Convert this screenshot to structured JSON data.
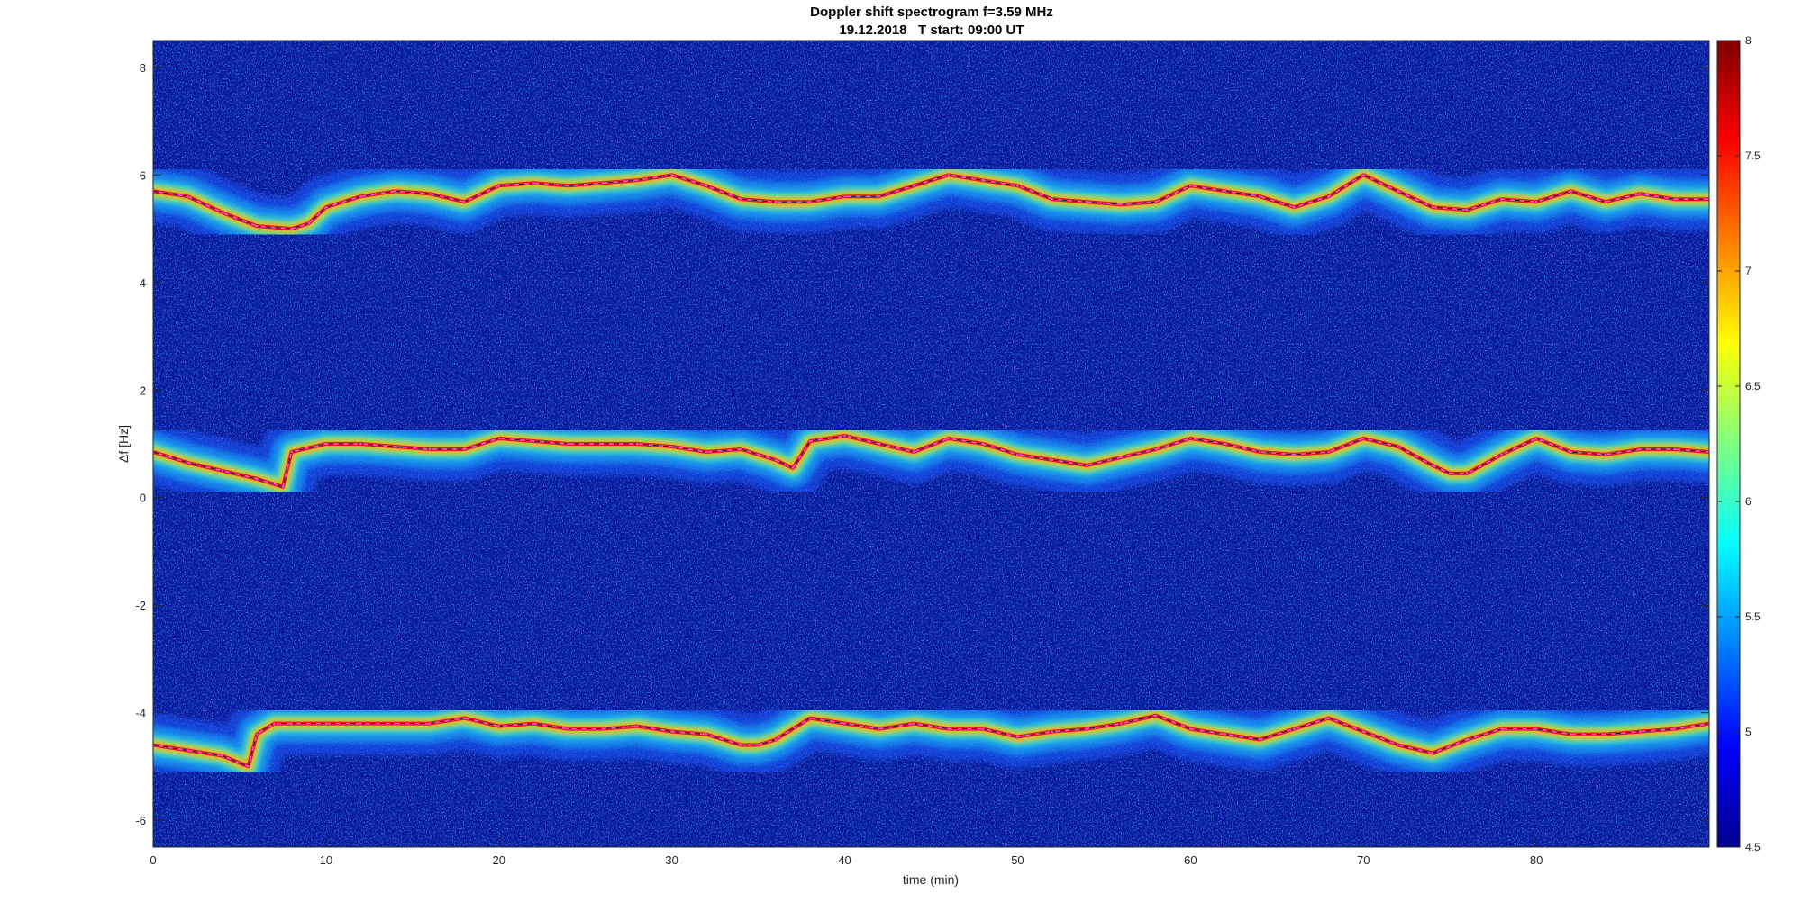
{
  "chart_data": {
    "type": "heatmap",
    "title": "Doppler shift spectrogram f=3.59 MHz",
    "subtitle": "19.12.2018   T start: 09:00 UT",
    "xlabel": "time (min)",
    "ylabel": "Δf [Hz]",
    "xlim": [
      0,
      90
    ],
    "ylim": [
      -6.5,
      8.5
    ],
    "x_ticks": [
      0,
      10,
      20,
      30,
      40,
      50,
      60,
      70,
      80
    ],
    "y_ticks": [
      -6,
      -4,
      -2,
      0,
      2,
      4,
      6,
      8
    ],
    "colorbar": {
      "range": [
        4.5,
        8
      ],
      "ticks": [
        4.5,
        5,
        5.5,
        6,
        6.5,
        7,
        7.5,
        8
      ],
      "colormap": "jet"
    },
    "background_color": "#0a1aa0",
    "grid": false,
    "series": [
      {
        "x": [
          0,
          2,
          4,
          6,
          8,
          9,
          10,
          12,
          14,
          16,
          18,
          20,
          22,
          24,
          26,
          28,
          30,
          32,
          34,
          36,
          38,
          40,
          42,
          44,
          46,
          48,
          50,
          52,
          54,
          56,
          58,
          60,
          62,
          64,
          66,
          68,
          70,
          72,
          74,
          76,
          78,
          80,
          82,
          84,
          86,
          88,
          90
        ],
        "values": [
          5.7,
          5.6,
          5.3,
          5.05,
          5.0,
          5.1,
          5.4,
          5.6,
          5.7,
          5.65,
          5.5,
          5.8,
          5.85,
          5.8,
          5.85,
          5.9,
          6.0,
          5.8,
          5.55,
          5.5,
          5.5,
          5.6,
          5.6,
          5.8,
          6.0,
          5.9,
          5.8,
          5.55,
          5.5,
          5.45,
          5.5,
          5.8,
          5.7,
          5.6,
          5.4,
          5.6,
          6.0,
          5.7,
          5.4,
          5.35,
          5.55,
          5.5,
          5.7,
          5.5,
          5.65,
          5.55,
          5.55
        ]
      },
      {
        "x": [
          0,
          2,
          4,
          6,
          7.5,
          8,
          10,
          12,
          14,
          16,
          18,
          20,
          22,
          24,
          26,
          28,
          30,
          32,
          34,
          36,
          37,
          38,
          40,
          42,
          44,
          46,
          48,
          50,
          52,
          54,
          56,
          58,
          60,
          62,
          64,
          66,
          68,
          70,
          72,
          74,
          75,
          76,
          78,
          80,
          82,
          84,
          86,
          88,
          90
        ],
        "values": [
          0.85,
          0.65,
          0.5,
          0.35,
          0.2,
          0.85,
          1.0,
          1.0,
          0.95,
          0.9,
          0.9,
          1.1,
          1.05,
          1.0,
          1.0,
          1.0,
          0.95,
          0.85,
          0.9,
          0.7,
          0.55,
          1.05,
          1.15,
          1.0,
          0.85,
          1.1,
          1.0,
          0.8,
          0.7,
          0.6,
          0.75,
          0.9,
          1.1,
          1.0,
          0.85,
          0.8,
          0.85,
          1.1,
          0.95,
          0.6,
          0.45,
          0.45,
          0.8,
          1.1,
          0.85,
          0.8,
          0.9,
          0.9,
          0.85
        ]
      },
      {
        "x": [
          0,
          2,
          4,
          5.5,
          6,
          7,
          8,
          10,
          12,
          14,
          16,
          18,
          20,
          22,
          24,
          26,
          28,
          30,
          32,
          34,
          35,
          36,
          38,
          40,
          42,
          44,
          46,
          48,
          50,
          52,
          54,
          56,
          58,
          60,
          62,
          64,
          66,
          68,
          70,
          72,
          74,
          76,
          78,
          80,
          82,
          84,
          86,
          88,
          90
        ],
        "values": [
          -4.6,
          -4.7,
          -4.8,
          -5.0,
          -4.4,
          -4.2,
          -4.2,
          -4.2,
          -4.2,
          -4.2,
          -4.2,
          -4.1,
          -4.25,
          -4.2,
          -4.3,
          -4.3,
          -4.25,
          -4.35,
          -4.4,
          -4.6,
          -4.6,
          -4.5,
          -4.1,
          -4.2,
          -4.3,
          -4.2,
          -4.3,
          -4.3,
          -4.45,
          -4.35,
          -4.3,
          -4.2,
          -4.05,
          -4.3,
          -4.4,
          -4.5,
          -4.3,
          -4.1,
          -4.35,
          -4.6,
          -4.75,
          -4.5,
          -4.3,
          -4.3,
          -4.4,
          -4.4,
          -4.35,
          -4.3,
          -4.2
        ]
      }
    ]
  }
}
